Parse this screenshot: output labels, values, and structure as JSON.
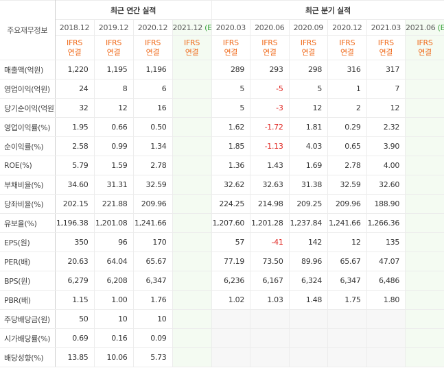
{
  "header": {
    "corner": "주요재무정보",
    "groups": [
      {
        "title": "최근 연간 실적",
        "columns": [
          {
            "period": "2018.12",
            "basis": [
              "IFRS",
              "연결"
            ]
          },
          {
            "period": "2019.12",
            "basis": [
              "IFRS",
              "연결"
            ]
          },
          {
            "period": "2020.12",
            "basis": [
              "IFRS",
              "연결"
            ]
          },
          {
            "period": "2021.12",
            "mark": "(E)",
            "basis": [
              "IFRS",
              "연결"
            ]
          }
        ]
      },
      {
        "title": "최근 분기 실적",
        "columns": [
          {
            "period": "2020.03",
            "basis": [
              "IFRS",
              "연결"
            ]
          },
          {
            "period": "2020.06",
            "basis": [
              "IFRS",
              "연결"
            ]
          },
          {
            "period": "2020.09",
            "basis": [
              "IFRS",
              "연결"
            ]
          },
          {
            "period": "2020.12",
            "basis": [
              "IFRS",
              "연결"
            ]
          },
          {
            "period": "2021.03",
            "basis": [
              "IFRS",
              "연결"
            ]
          },
          {
            "period": "2021.06",
            "mark": "(E)",
            "basis": [
              "IFRS",
              "연결"
            ]
          }
        ]
      }
    ]
  },
  "sections": [
    {
      "rows": [
        {
          "label": "매출액(억원)",
          "values": [
            "1,220",
            "1,195",
            "1,196",
            null,
            "289",
            "293",
            "298",
            "316",
            "317",
            null
          ]
        },
        {
          "label": "영업이익(억원)",
          "values": [
            "24",
            "8",
            "6",
            null,
            "5",
            "-5",
            "5",
            "1",
            "7",
            null
          ]
        },
        {
          "label": "당기순이익(억원)",
          "values": [
            "32",
            "12",
            "16",
            null,
            "5",
            "-3",
            "12",
            "2",
            "12",
            null
          ]
        }
      ]
    },
    {
      "rows": [
        {
          "label": "영업이익률(%)",
          "values": [
            "1.95",
            "0.66",
            "0.50",
            null,
            "1.62",
            "-1.72",
            "1.81",
            "0.29",
            "2.32",
            null
          ]
        },
        {
          "label": "순이익률(%)",
          "values": [
            "2.58",
            "0.99",
            "1.34",
            null,
            "1.85",
            "-1.13",
            "4.03",
            "0.65",
            "3.90",
            null
          ]
        },
        {
          "label": "ROE(%)",
          "values": [
            "5.79",
            "1.59",
            "2.78",
            null,
            "1.36",
            "1.43",
            "1.69",
            "2.78",
            "4.00",
            null
          ]
        }
      ]
    },
    {
      "rows": [
        {
          "label": "부채비율(%)",
          "values": [
            "34.60",
            "31.31",
            "32.59",
            null,
            "32.62",
            "32.63",
            "31.38",
            "32.59",
            "32.60",
            null
          ]
        },
        {
          "label": "당좌비율(%)",
          "values": [
            "202.15",
            "221.88",
            "209.96",
            null,
            "224.25",
            "214.98",
            "209.25",
            "209.96",
            "188.90",
            null
          ]
        },
        {
          "label": "유보율(%)",
          "values": [
            "1,196.38",
            "1,201.08",
            "1,241.66",
            null,
            "1,207.60",
            "1,201.28",
            "1,237.84",
            "1,241.66",
            "1,266.36",
            null
          ]
        }
      ]
    },
    {
      "rows": [
        {
          "label": "EPS(원)",
          "values": [
            "350",
            "96",
            "170",
            null,
            "57",
            "-41",
            "142",
            "12",
            "135",
            null
          ]
        },
        {
          "label": "PER(배)",
          "values": [
            "20.63",
            "64.04",
            "65.67",
            null,
            "77.19",
            "73.50",
            "89.96",
            "65.67",
            "47.07",
            null
          ]
        },
        {
          "label": "BPS(원)",
          "values": [
            "6,279",
            "6,208",
            "6,347",
            null,
            "6,236",
            "6,167",
            "6,324",
            "6,347",
            "6,486",
            null
          ]
        },
        {
          "label": "PBR(배)",
          "values": [
            "1.15",
            "1.00",
            "1.76",
            null,
            "1.02",
            "1.03",
            "1.48",
            "1.75",
            "1.80",
            null
          ]
        }
      ]
    },
    {
      "rows": [
        {
          "label": "주당배당금(원)",
          "values": [
            "50",
            "10",
            "10",
            null,
            null,
            null,
            null,
            null,
            null,
            null
          ]
        },
        {
          "label": "시가배당률(%)",
          "values": [
            "0.69",
            "0.16",
            "0.09",
            null,
            null,
            null,
            null,
            null,
            null,
            null
          ]
        },
        {
          "label": "배당성향(%)",
          "values": [
            "13.85",
            "10.06",
            "5.73",
            null,
            null,
            null,
            null,
            null,
            null,
            null
          ]
        }
      ]
    }
  ]
}
